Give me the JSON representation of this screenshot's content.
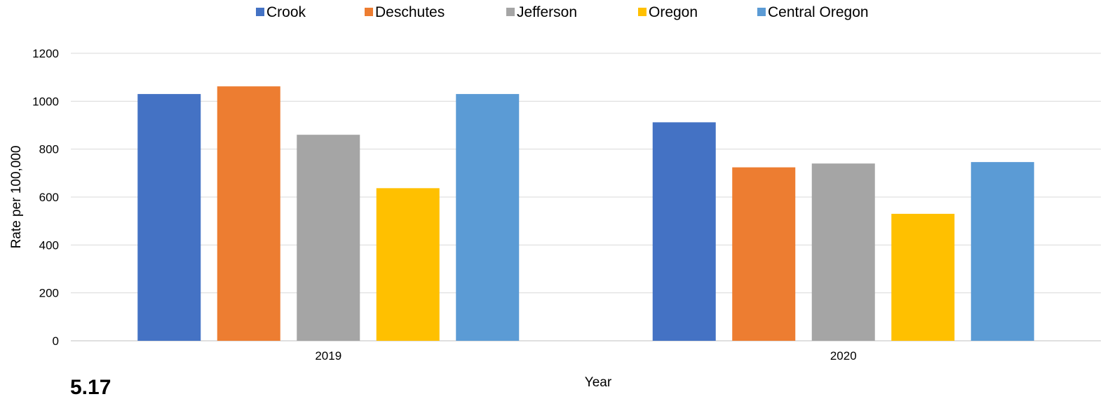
{
  "chart_data": {
    "type": "bar",
    "categories": [
      "2019",
      "2020"
    ],
    "series": [
      {
        "name": "Crook",
        "color": "#4472C4",
        "values": [
          1030,
          912
        ]
      },
      {
        "name": "Deschutes",
        "color": "#ED7D31",
        "values": [
          1062,
          724
        ]
      },
      {
        "name": "Jefferson",
        "color": "#A5A5A5",
        "values": [
          860,
          740
        ]
      },
      {
        "name": "Oregon",
        "color": "#FFC000",
        "values": [
          637,
          530
        ]
      },
      {
        "name": "Central Oregon",
        "color": "#5B9BD5",
        "values": [
          1030,
          746
        ]
      }
    ],
    "title": "",
    "xlabel": "Year",
    "ylabel": "Rate per 100,000",
    "ylim": [
      0,
      1200
    ],
    "yticks": [
      0,
      200,
      400,
      600,
      800,
      1000,
      1200
    ],
    "grid": true,
    "legend_position": "top-center"
  },
  "footer_fragment": "5.17"
}
